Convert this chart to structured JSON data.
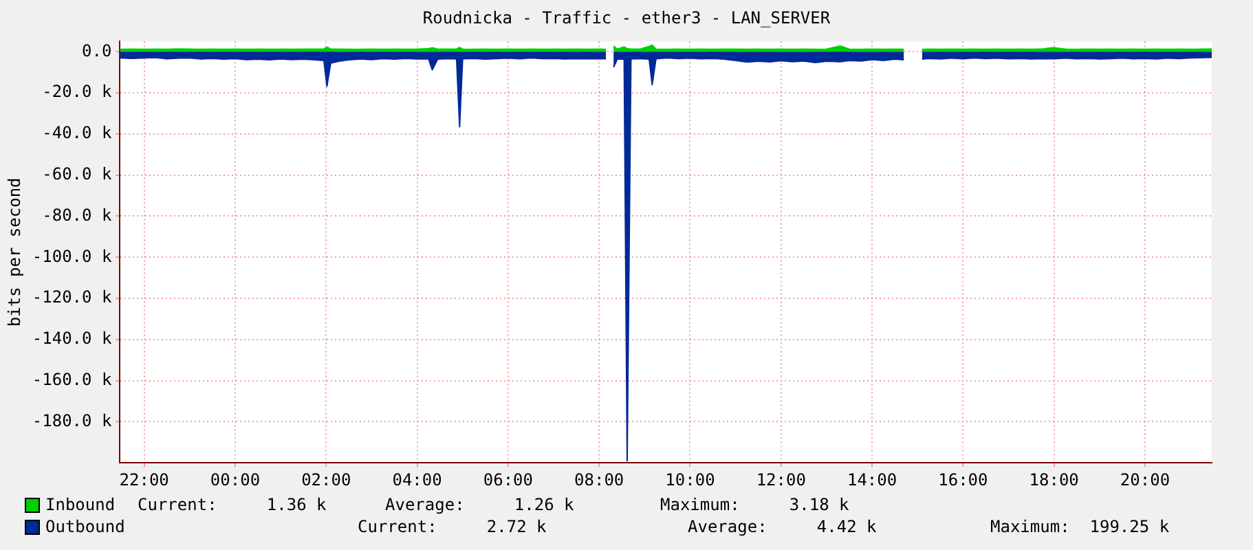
{
  "chart_data": {
    "type": "area",
    "title": "Roudnicka - Traffic - ether3 - LAN_SERVER",
    "ylabel": "bits per second",
    "x": [
      "--01-01T21:28",
      "--01-01T21:45",
      "--01-01T22:00",
      "--01-01T22:15",
      "--01-01T22:30",
      "--01-01T22:45",
      "--01-01T23:00",
      "--01-01T23:15",
      "--01-01T23:30",
      "--01-01T23:45",
      "--01-02T00:00",
      "--01-02T00:15",
      "--01-02T00:30",
      "--01-02T00:45",
      "--01-02T01:00",
      "--01-02T01:15",
      "--01-02T01:30",
      "--01-02T01:45",
      "--01-02T01:57",
      "--01-02T02:01",
      "--01-02T02:06",
      "--01-02T02:18",
      "--01-02T02:30",
      "--01-02T02:45",
      "--01-02T03:00",
      "--01-02T03:15",
      "--01-02T03:30",
      "--01-02T03:45",
      "--01-02T04:00",
      "--01-02T04:15",
      "--01-02T04:20",
      "--01-02T04:27",
      "--01-02T04:42",
      "--01-02T04:52",
      "--01-02T04:56",
      "--01-02T05:00",
      "--01-02T05:15",
      "--01-02T05:30",
      "--01-02T05:45",
      "--01-02T06:00",
      "--01-02T06:15",
      "--01-02T06:30",
      "--01-02T06:45",
      "--01-02T07:00",
      "--01-02T07:15",
      "--01-02T07:30",
      "--01-02T07:45",
      "--01-02T08:00",
      "--01-02T08:09",
      "--01-02T08:15",
      "--01-02T08:19",
      "--01-02T08:24",
      "--01-02T08:33",
      "--01-02T08:37",
      "--01-02T08:42",
      "--01-02T08:54",
      "--01-02T09:06",
      "--01-02T09:10",
      "--01-02T09:15",
      "--01-02T09:30",
      "--01-02T09:45",
      "--01-02T10:00",
      "--01-02T10:15",
      "--01-02T10:30",
      "--01-02T10:45",
      "--01-02T11:00",
      "--01-02T11:15",
      "--01-02T11:30",
      "--01-02T11:45",
      "--01-02T12:00",
      "--01-02T12:15",
      "--01-02T12:30",
      "--01-02T12:45",
      "--01-02T13:00",
      "--01-02T13:18",
      "--01-02T13:30",
      "--01-02T13:45",
      "--01-02T14:00",
      "--01-02T14:15",
      "--01-02T14:30",
      "--01-02T14:42",
      "--01-02T14:54",
      "--01-02T15:06",
      "--01-02T15:15",
      "--01-02T15:30",
      "--01-02T15:45",
      "--01-02T16:00",
      "--01-02T16:15",
      "--01-02T16:30",
      "--01-02T16:45",
      "--01-02T17:00",
      "--01-02T17:15",
      "--01-02T17:30",
      "--01-02T17:45",
      "--01-02T18:00",
      "--01-02T18:15",
      "--01-02T18:30",
      "--01-02T18:45",
      "--01-02T19:00",
      "--01-02T19:15",
      "--01-02T19:30",
      "--01-02T19:45",
      "--01-02T20:00",
      "--01-02T20:15",
      "--01-02T20:30",
      "--01-02T20:45",
      "--01-02T21:00",
      "--01-02T21:28"
    ],
    "series": [
      {
        "name": "Inbound",
        "color": "#00cf00",
        "values": [
          1200,
          1300,
          1200,
          1300,
          1200,
          1400,
          1300,
          1200,
          1300,
          1200,
          1300,
          1200,
          1300,
          1200,
          1300,
          1200,
          1300,
          1300,
          1400,
          2200,
          1400,
          1300,
          1200,
          1200,
          1300,
          1200,
          1300,
          1200,
          1300,
          1500,
          2000,
          1300,
          1300,
          1400,
          2100,
          1300,
          1200,
          1300,
          1200,
          1300,
          1200,
          1300,
          1200,
          1300,
          1200,
          1300,
          1200,
          1300,
          1200,
          null,
          2800,
          1300,
          2400,
          1500,
          1300,
          1300,
          2600,
          3200,
          1300,
          1200,
          1300,
          1200,
          1300,
          1200,
          1300,
          1300,
          1200,
          1300,
          1200,
          1300,
          1200,
          1300,
          1200,
          1300,
          2800,
          1300,
          1200,
          1300,
          1200,
          1300,
          1200,
          null,
          1200,
          1300,
          1200,
          1300,
          1200,
          1300,
          1200,
          1300,
          1200,
          1300,
          1200,
          1400,
          2000,
          1300,
          1200,
          1300,
          1200,
          1300,
          1200,
          1300,
          1200,
          1300,
          1200,
          1300,
          1200,
          1400
        ]
      },
      {
        "name": "Outbound",
        "color": "#002a97",
        "values": [
          -3000,
          -3200,
          -3000,
          -2800,
          -3400,
          -3100,
          -3000,
          -3500,
          -3200,
          -3600,
          -3300,
          -3800,
          -3600,
          -3900,
          -3500,
          -3800,
          -3600,
          -3900,
          -4200,
          -16800,
          -5500,
          -4500,
          -3900,
          -3500,
          -3800,
          -3300,
          -3600,
          -3200,
          -3500,
          -3400,
          -8800,
          -3600,
          -3300,
          -3500,
          -36500,
          -3400,
          -3200,
          -3600,
          -3300,
          -3100,
          -3400,
          -3000,
          -3300,
          -3200,
          -3500,
          -3300,
          -3400,
          -3300,
          -3400,
          null,
          -7500,
          -3500,
          -3600,
          -199000,
          -3500,
          -3300,
          -3600,
          -16000,
          -3400,
          -3000,
          -3300,
          -3100,
          -3400,
          -3200,
          -3600,
          -4200,
          -5000,
          -4600,
          -4900,
          -4300,
          -4800,
          -4500,
          -5200,
          -4600,
          -4800,
          -4200,
          -4500,
          -3800,
          -4200,
          -3600,
          -3900,
          null,
          -3600,
          -3200,
          -3500,
          -3100,
          -3400,
          -3000,
          -3300,
          -3100,
          -3400,
          -3200,
          -3500,
          -3300,
          -3400,
          -3100,
          -3400,
          -3200,
          -3500,
          -3300,
          -3100,
          -3400,
          -3200,
          -3500,
          -3100,
          -3300,
          -3000,
          -2700
        ]
      }
    ],
    "xlim": [
      "--01-01T21:28",
      "--01-02T21:28"
    ],
    "xticks": [
      {
        "value": "--01-01T22:00",
        "label": "22:00"
      },
      {
        "value": "--01-02T00:00",
        "label": "00:00"
      },
      {
        "value": "--01-02T02:00",
        "label": "02:00"
      },
      {
        "value": "--01-02T04:00",
        "label": "04:00"
      },
      {
        "value": "--01-02T06:00",
        "label": "06:00"
      },
      {
        "value": "--01-02T08:00",
        "label": "08:00"
      },
      {
        "value": "--01-02T10:00",
        "label": "10:00"
      },
      {
        "value": "--01-02T12:00",
        "label": "12:00"
      },
      {
        "value": "--01-02T14:00",
        "label": "14:00"
      },
      {
        "value": "--01-02T16:00",
        "label": "16:00"
      },
      {
        "value": "--01-02T18:00",
        "label": "18:00"
      },
      {
        "value": "--01-02T20:00",
        "label": "20:00"
      }
    ],
    "ylim": [
      -200000,
      5000
    ],
    "yticks": [
      {
        "value": 0,
        "label": "0.0"
      },
      {
        "value": -20000,
        "label": "-20.0 k"
      },
      {
        "value": -40000,
        "label": "-40.0 k"
      },
      {
        "value": -60000,
        "label": "-60.0 k"
      },
      {
        "value": -80000,
        "label": "-80.0 k"
      },
      {
        "value": -100000,
        "label": "-100.0 k"
      },
      {
        "value": -120000,
        "label": "-120.0 k"
      },
      {
        "value": -140000,
        "label": "-140.0 k"
      },
      {
        "value": -160000,
        "label": "-160.0 k"
      },
      {
        "value": -180000,
        "label": "-180.0 k"
      }
    ],
    "grid": true,
    "legend": "bottom",
    "annotations": [
      "Current:     1.36 k",
      "Average:     1.26 k",
      "Maximum:     3.18 k",
      "Current:     2.72 k",
      "Average:     4.42 k",
      "Maximum:  199.25 k"
    ]
  }
}
